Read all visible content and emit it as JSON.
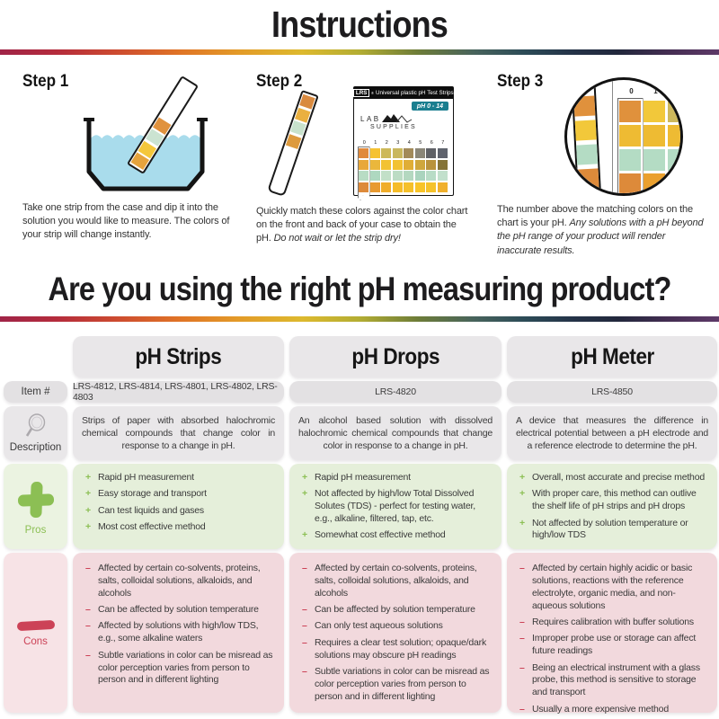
{
  "title": "Instructions",
  "question": "Are you using the right pH measuring product?",
  "steps": [
    {
      "heading": "Step 1",
      "runs": [
        {
          "text": "Take one strip from the case and dip it into the solution you would like to measure. The colors of your strip will change instantly.",
          "italic": false
        }
      ]
    },
    {
      "heading": "Step 2",
      "runs": [
        {
          "text": "Quickly match these colors against the color chart on the front and back of your case to obtain the pH. ",
          "italic": false
        },
        {
          "text": "Do not wait or let the strip dry!",
          "italic": true
        }
      ]
    },
    {
      "heading": "Step 3",
      "runs": [
        {
          "text": "The number above the matching colors on the chart is your pH. ",
          "italic": false
        },
        {
          "text": "Any solutions with a pH beyond the pH range of your product will render inaccurate results.",
          "italic": true
        }
      ]
    }
  ],
  "illustrations": {
    "step1_strip_pads": [
      "#e0923e",
      "#cbe3d1",
      "#f4c73b",
      "#e5a33d"
    ],
    "step2_strip_pads": [
      "#d98a3f",
      "#eab040",
      "#c8e2cc",
      "#dd9a3d"
    ],
    "case": {
      "brand": "LRS",
      "reg_mark": "®",
      "title_rest": "Universal plastic pH Test Strips",
      "badge": "pH 0 - 14",
      "logo_top": "LAB",
      "logo_bottom": "SUPPLIES",
      "column_numbers": [
        "0",
        "1",
        "2",
        "3",
        "4",
        "5",
        "6",
        "7"
      ],
      "grid": [
        [
          "#e08a3c",
          "#f5c232",
          "#cdb858",
          "#c9b75e",
          "#a28a5a",
          "#8a8678",
          "#5f6166",
          "#5f636d"
        ],
        [
          "#e8a83a",
          "#eab73c",
          "#f2c233",
          "#f2c233",
          "#e0ae36",
          "#cfa73c",
          "#b9933c",
          "#857438"
        ],
        [
          "#b8dcc4",
          "#aed8c0",
          "#c2e0c8",
          "#bcdcc4",
          "#b4d8c0",
          "#aad4be",
          "#b8dcc6",
          "#c2e0cc"
        ],
        [
          "#dd8a3a",
          "#e89a30",
          "#f0ad2a",
          "#f5bc28",
          "#f5c02a",
          "#f8c428",
          "#f5c22a",
          "#f0b02c"
        ]
      ]
    },
    "magnifier": {
      "column_numbers": [
        "0",
        "1",
        "2"
      ],
      "strip_pads": [
        "#e0913c",
        "#f2c83a",
        "#b4dcc4",
        "#dd8a3a"
      ],
      "grid": [
        [
          "#e0913c",
          "#f2c83a",
          "#cdb85c"
        ],
        [
          "#eebb33",
          "#eebb33",
          "#eebb33"
        ],
        [
          "#b4dcc4",
          "#b4dcc4",
          "#b4dcc4"
        ],
        [
          "#dd8a3a",
          "#eaa02e",
          "#f2bc2a"
        ]
      ]
    }
  },
  "table": {
    "row_labels": {
      "item": "Item #",
      "description": "Description",
      "pros": "Pros",
      "cons": "Cons"
    },
    "markers": {
      "pros": "+",
      "cons": "–"
    },
    "columns": [
      {
        "name": "pH Strips",
        "item": "LRS-4812, LRS-4814, LRS-4801, LRS-4802, LRS-4803",
        "description": "Strips of paper with absorbed halochromic chemical compounds that change color in response to a change in pH.",
        "pros": [
          "Rapid pH measurement",
          "Easy storage and transport",
          "Can test liquids and gases",
          "Most cost effective method"
        ],
        "cons": [
          "Affected by certain co-solvents, proteins, salts, colloidal solutions, alkaloids, and alcohols",
          "Can be affected by solution temperature",
          "Affected by solutions with high/low TDS, e.g., some alkaline waters",
          "Subtle variations in color can be misread as color perception varies from person to person and in different lighting"
        ]
      },
      {
        "name": "pH Drops",
        "item": "LRS-4820",
        "description": "An alcohol based solution with dissolved halochromic chemical compounds that change color in response to a change in pH.",
        "pros": [
          "Rapid pH measurement",
          "Not affected by high/low Total Dissolved Solutes (TDS) - perfect for testing water, e.g., alkaline, filtered, tap, etc.",
          "Somewhat cost effective method"
        ],
        "cons": [
          "Affected by certain co-solvents, proteins, salts, colloidal solutions, alkaloids, and alcohols",
          "Can be affected by solution temperature",
          "Can only test aqueous solutions",
          "Requires a clear test solution; opaque/dark solutions may obscure pH readings",
          "Subtle variations in color can be misread as color perception varies from person to person and in different lighting"
        ]
      },
      {
        "name": "pH Meter",
        "item": "LRS-4850",
        "description": "A device that measures the difference in electrical potential between a pH electrode and a reference electrode to determine the pH.",
        "pros": [
          "Overall, most accurate and precise method",
          "With proper care, this method can outlive the shelf life of pH strips and pH drops",
          "Not affected by solution temperature or high/low TDS"
        ],
        "cons": [
          "Affected by certain highly acidic or basic solutions, reactions with the reference electrolyte, organic media, and non-aqueous solutions",
          "Requires calibration with buffer solutions",
          "Improper probe use or storage can affect future readings",
          "Being an electrical instrument with a glass probe, this method is sensitive to storage and transport",
          "Usually a more expensive method"
        ]
      }
    ]
  },
  "colors": {
    "water_blue": "#a9dcec",
    "badge_teal": "#1a7e8f",
    "pros_green": "#8cbf54",
    "pros_bg": "#e5efda",
    "pros_label_bg": "#ebf3e1",
    "cons_red": "#cc4257",
    "cons_bg": "#f2d9dd",
    "cons_label_bg": "#f7e3e6",
    "gray_cell": "#e9e7e9",
    "gray_cell_dark": "#e3e1e3"
  }
}
